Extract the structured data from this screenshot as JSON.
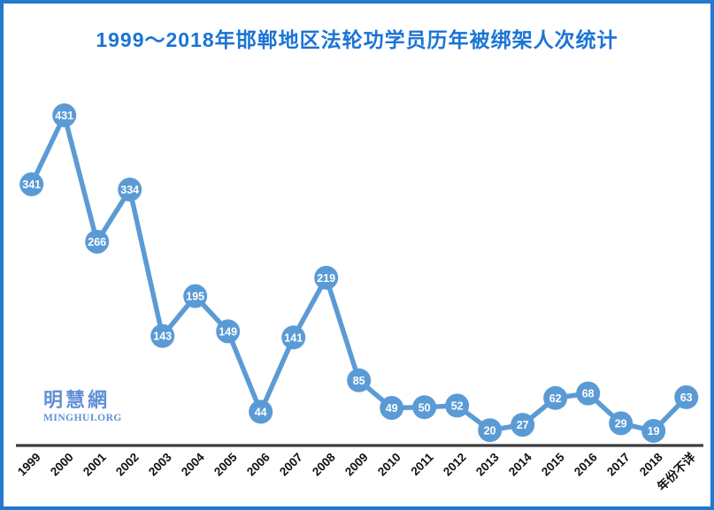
{
  "page": {
    "title": "1999～2018年邯郸地区法轮功学员历年被绑架人次统计"
  },
  "watermark": {
    "name": "明慧網",
    "url_text": "MINGHUI.ORG"
  },
  "colors": {
    "accent_blue": "#5B9BD5",
    "title_blue": "#1B74D4",
    "border_blue": "#2279CE",
    "axis_dark": "#3D3D3D",
    "watermark_blue": "#618FD6",
    "marker_text_white": "#FFFFFF",
    "x_label_black": "#111111"
  },
  "chart_data": {
    "type": "line",
    "title": "1999～2018年邯郸地区法轮功学员历年被绑架人次统计",
    "categories": [
      "1999",
      "2000",
      "2001",
      "2002",
      "2003",
      "2004",
      "2005",
      "2006",
      "2007",
      "2008",
      "2009",
      "2010",
      "2011",
      "2012",
      "2013",
      "2014",
      "2015",
      "2016",
      "2017",
      "2018",
      "年份不详"
    ],
    "values": [
      341,
      431,
      266,
      334,
      143,
      195,
      149,
      44,
      141,
      219,
      85,
      49,
      50,
      52,
      20,
      27,
      62,
      68,
      29,
      19,
      63
    ],
    "xlabel": "",
    "ylabel": "",
    "ylim": [
      0,
      450
    ],
    "grid": false,
    "legend": false,
    "y_axis_visible": false,
    "data_labels": "inside-marker",
    "marker": "circle",
    "x_label_rotation": -45
  }
}
